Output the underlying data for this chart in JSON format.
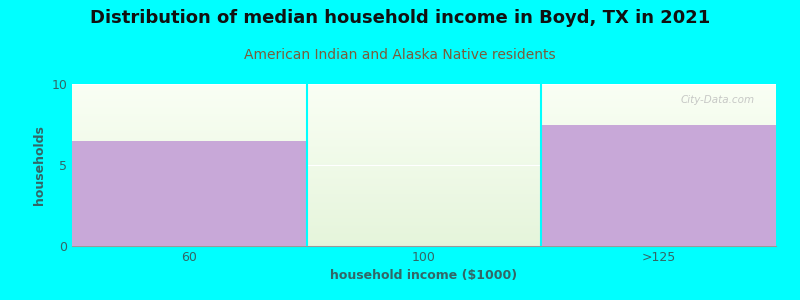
{
  "title": "Distribution of median household income in Boyd, TX in 2021",
  "subtitle": "American Indian and Alaska Native residents",
  "categories": [
    "60",
    "100",
    ">125"
  ],
  "values": [
    6.5,
    0,
    7.5
  ],
  "bar_color": "#c8a8d8",
  "background_color": "#00ffff",
  "plot_bg_color_top": "#f5faf0",
  "plot_bg_color_bottom": "#e8f2e0",
  "xlabel": "household income ($1000)",
  "ylabel": "households",
  "ylim": [
    0,
    10
  ],
  "yticks": [
    0,
    5,
    10
  ],
  "title_fontsize": 13,
  "subtitle_fontsize": 10,
  "axis_label_fontsize": 9,
  "tick_fontsize": 9,
  "title_color": "#111111",
  "subtitle_color": "#7a5c3a",
  "axis_label_color": "#336666",
  "tick_color": "#336666",
  "watermark": "City-Data.com",
  "watermark_color": "#bbbbbb",
  "divider_color": "#00ffff",
  "grid_color": "#ffffff"
}
